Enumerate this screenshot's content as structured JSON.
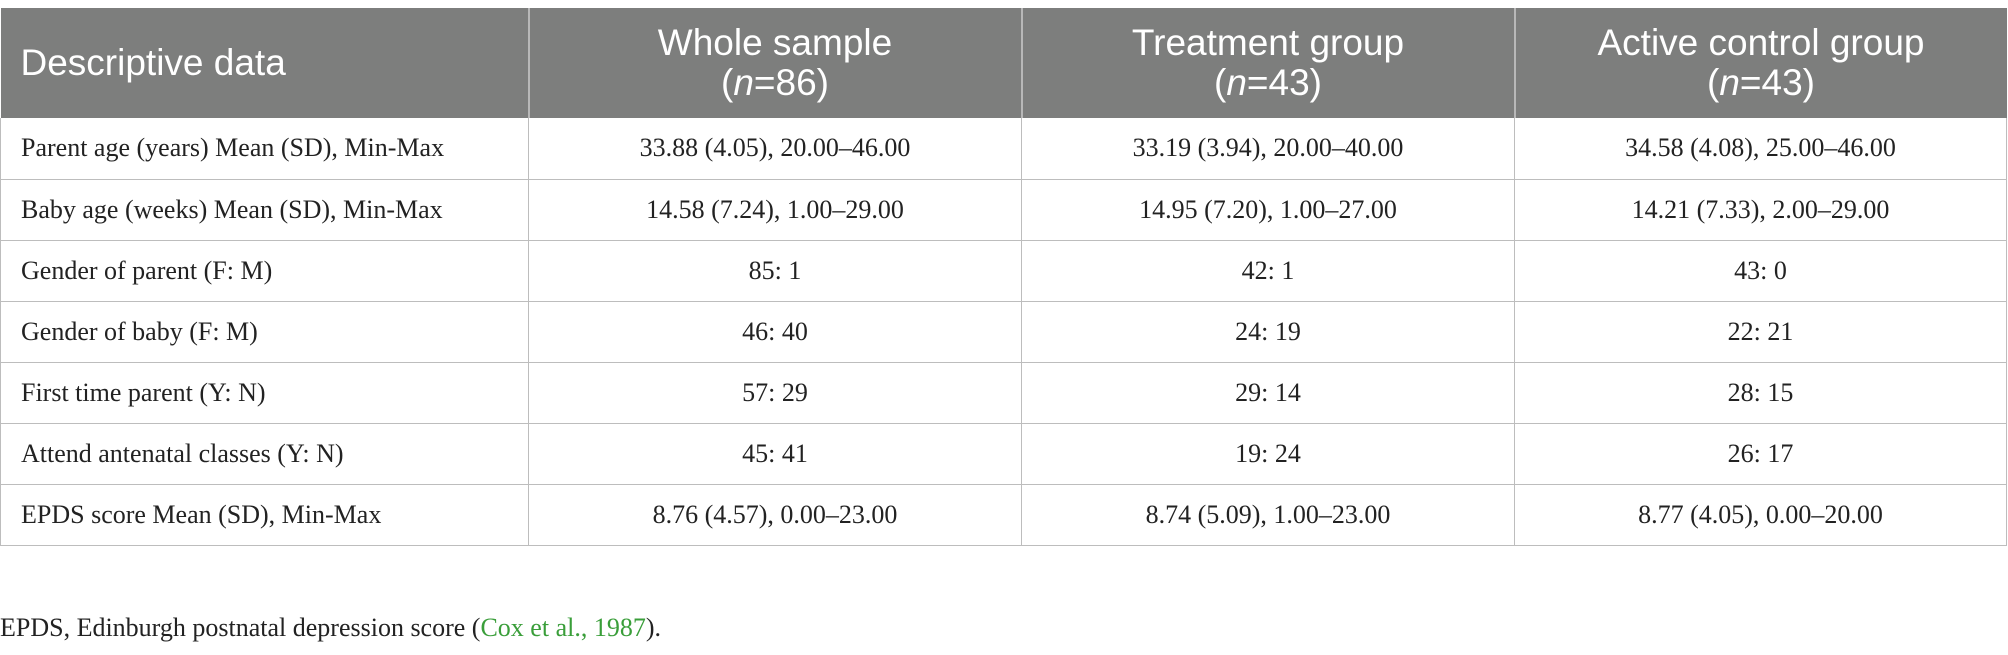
{
  "table": {
    "headers": [
      {
        "label": "Descriptive data",
        "n_prefix": "",
        "n_italic": "",
        "n_value": "",
        "n_suffix": ""
      },
      {
        "label": "Whole sample",
        "n_prefix": "(",
        "n_italic": "n",
        "n_value": "=86",
        "n_suffix": ")"
      },
      {
        "label": "Treatment group",
        "n_prefix": "(",
        "n_italic": "n",
        "n_value": "=43",
        "n_suffix": ")"
      },
      {
        "label": "Active control group",
        "n_prefix": "(",
        "n_italic": "n",
        "n_value": "=43",
        "n_suffix": ")"
      }
    ],
    "rows": [
      {
        "label": "Parent age (years) Mean (SD), Min-Max",
        "values": [
          "33.88 (4.05), 20.00–46.00",
          "33.19 (3.94), 20.00–40.00",
          "34.58 (4.08), 25.00–46.00"
        ]
      },
      {
        "label": "Baby age (weeks) Mean (SD), Min-Max",
        "values": [
          "14.58 (7.24), 1.00–29.00",
          "14.95 (7.20), 1.00–27.00",
          "14.21 (7.33), 2.00–29.00"
        ]
      },
      {
        "label": "Gender of parent (F: M)",
        "values": [
          "85: 1",
          "42: 1",
          "43: 0"
        ]
      },
      {
        "label": "Gender of baby (F: M)",
        "values": [
          "46: 40",
          "24: 19",
          "22: 21"
        ]
      },
      {
        "label": "First time parent (Y: N)",
        "values": [
          "57: 29",
          "29: 14",
          "28: 15"
        ]
      },
      {
        "label": "Attend antenatal classes (Y: N)",
        "values": [
          "45: 41",
          "19: 24",
          "26: 17"
        ]
      },
      {
        "label": "EPDS score Mean (SD), Min-Max",
        "values": [
          "8.76 (4.57), 0.00–23.00",
          "8.74 (5.09), 1.00–23.00",
          "8.77 (4.05), 0.00–20.00"
        ]
      }
    ]
  },
  "footnote": {
    "text_before": "EPDS, Edinburgh postnatal depression score (",
    "citation": "Cox et al., 1987",
    "text_after": ")."
  },
  "colors": {
    "header_bg": "#7d7e7d",
    "header_text": "#ffffff",
    "citation_link": "#3a9e3a"
  }
}
